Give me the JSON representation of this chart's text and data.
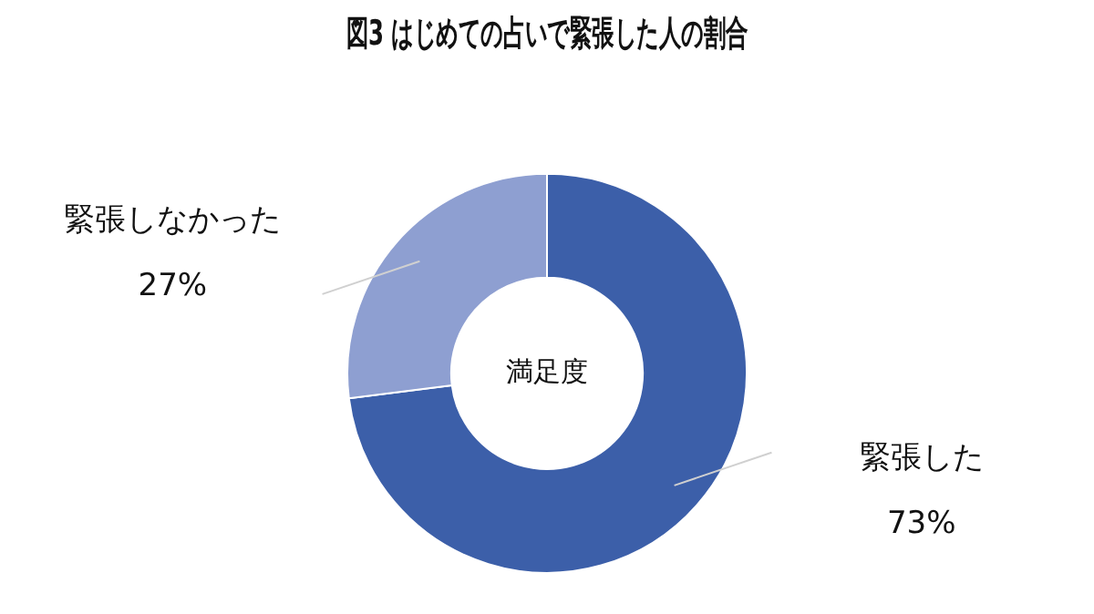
{
  "chart_data": {
    "type": "donut",
    "title": "図3 はじめての占いで緊張した人の割合",
    "categories": [
      "緊張した",
      "緊張しなかった"
    ],
    "values": [
      73,
      27
    ],
    "value_labels": [
      "73%",
      "27%"
    ],
    "colors": [
      "#3c5fa9",
      "#8e9fd1"
    ],
    "annotations": [
      "満足度"
    ],
    "legend": false
  }
}
